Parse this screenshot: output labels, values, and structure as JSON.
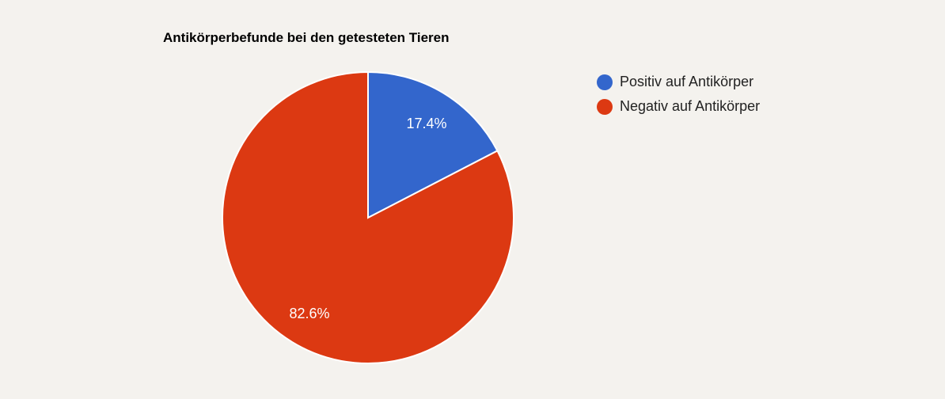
{
  "chart_data": {
    "type": "pie",
    "title": "Antikörperbefunde bei den getesteten Tieren",
    "categories": [
      "Positiv auf Antikörper",
      "Negativ auf Antikörper"
    ],
    "values": [
      17.4,
      82.6
    ],
    "labels": [
      "17.4%",
      "82.6%"
    ],
    "colors": [
      "#3366cc",
      "#dc3912"
    ],
    "legend_position": "right"
  },
  "legend": [
    {
      "label": "Positiv auf Antikörper",
      "color": "#3366cc"
    },
    {
      "label": "Negativ auf Antikörper",
      "color": "#dc3912"
    }
  ]
}
